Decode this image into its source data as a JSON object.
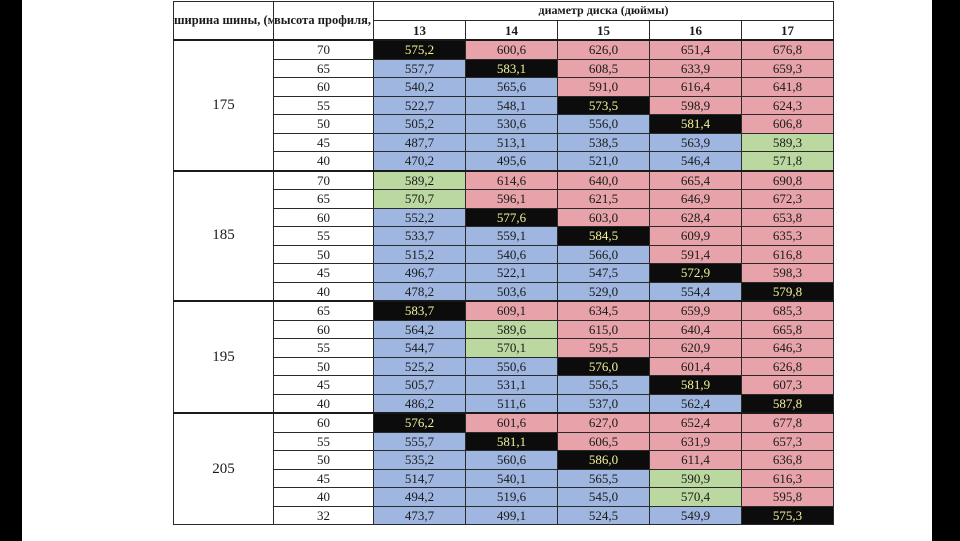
{
  "headers": {
    "width": "ширина шины, (мм)",
    "profile": "высота профиля, (%)",
    "diameter": "диаметр диска (дюймы)",
    "diameters": [
      "13",
      "14",
      "15",
      "16",
      "17"
    ]
  },
  "colors": {
    "blue": "#9fb7e0",
    "red": "#e7a3a9",
    "green": "#bcd8a1",
    "highlight_bg": "#0c0c0c",
    "highlight_text": "#f3f19a"
  },
  "groups": [
    {
      "width": "175",
      "rows": [
        {
          "profile": "70",
          "cells": [
            {
              "v": "575,2",
              "c": "black"
            },
            {
              "v": "600,6",
              "c": "red"
            },
            {
              "v": "626,0",
              "c": "red"
            },
            {
              "v": "651,4",
              "c": "red"
            },
            {
              "v": "676,8",
              "c": "red"
            }
          ]
        },
        {
          "profile": "65",
          "cells": [
            {
              "v": "557,7",
              "c": "blue"
            },
            {
              "v": "583,1",
              "c": "black"
            },
            {
              "v": "608,5",
              "c": "red"
            },
            {
              "v": "633,9",
              "c": "red"
            },
            {
              "v": "659,3",
              "c": "red"
            }
          ]
        },
        {
          "profile": "60",
          "cells": [
            {
              "v": "540,2",
              "c": "blue"
            },
            {
              "v": "565,6",
              "c": "blue"
            },
            {
              "v": "591,0",
              "c": "red"
            },
            {
              "v": "616,4",
              "c": "red"
            },
            {
              "v": "641,8",
              "c": "red"
            }
          ]
        },
        {
          "profile": "55",
          "cells": [
            {
              "v": "522,7",
              "c": "blue"
            },
            {
              "v": "548,1",
              "c": "blue"
            },
            {
              "v": "573,5",
              "c": "black"
            },
            {
              "v": "598,9",
              "c": "red"
            },
            {
              "v": "624,3",
              "c": "red"
            }
          ]
        },
        {
          "profile": "50",
          "cells": [
            {
              "v": "505,2",
              "c": "blue"
            },
            {
              "v": "530,6",
              "c": "blue"
            },
            {
              "v": "556,0",
              "c": "blue"
            },
            {
              "v": "581,4",
              "c": "black"
            },
            {
              "v": "606,8",
              "c": "red"
            }
          ]
        },
        {
          "profile": "45",
          "cells": [
            {
              "v": "487,7",
              "c": "blue"
            },
            {
              "v": "513,1",
              "c": "blue"
            },
            {
              "v": "538,5",
              "c": "blue"
            },
            {
              "v": "563,9",
              "c": "blue"
            },
            {
              "v": "589,3",
              "c": "green"
            }
          ]
        },
        {
          "profile": "40",
          "cells": [
            {
              "v": "470,2",
              "c": "blue"
            },
            {
              "v": "495,6",
              "c": "blue"
            },
            {
              "v": "521,0",
              "c": "blue"
            },
            {
              "v": "546,4",
              "c": "blue"
            },
            {
              "v": "571,8",
              "c": "green"
            }
          ]
        }
      ]
    },
    {
      "width": "185",
      "rows": [
        {
          "profile": "70",
          "cells": [
            {
              "v": "589,2",
              "c": "green"
            },
            {
              "v": "614,6",
              "c": "red"
            },
            {
              "v": "640,0",
              "c": "red"
            },
            {
              "v": "665,4",
              "c": "red"
            },
            {
              "v": "690,8",
              "c": "red"
            }
          ]
        },
        {
          "profile": "65",
          "cells": [
            {
              "v": "570,7",
              "c": "green"
            },
            {
              "v": "596,1",
              "c": "red"
            },
            {
              "v": "621,5",
              "c": "red"
            },
            {
              "v": "646,9",
              "c": "red"
            },
            {
              "v": "672,3",
              "c": "red"
            }
          ]
        },
        {
          "profile": "60",
          "cells": [
            {
              "v": "552,2",
              "c": "blue"
            },
            {
              "v": "577,6",
              "c": "black"
            },
            {
              "v": "603,0",
              "c": "red"
            },
            {
              "v": "628,4",
              "c": "red"
            },
            {
              "v": "653,8",
              "c": "red"
            }
          ]
        },
        {
          "profile": "55",
          "cells": [
            {
              "v": "533,7",
              "c": "blue"
            },
            {
              "v": "559,1",
              "c": "blue"
            },
            {
              "v": "584,5",
              "c": "black"
            },
            {
              "v": "609,9",
              "c": "red"
            },
            {
              "v": "635,3",
              "c": "red"
            }
          ]
        },
        {
          "profile": "50",
          "cells": [
            {
              "v": "515,2",
              "c": "blue"
            },
            {
              "v": "540,6",
              "c": "blue"
            },
            {
              "v": "566,0",
              "c": "blue"
            },
            {
              "v": "591,4",
              "c": "red"
            },
            {
              "v": "616,8",
              "c": "red"
            }
          ]
        },
        {
          "profile": "45",
          "cells": [
            {
              "v": "496,7",
              "c": "blue"
            },
            {
              "v": "522,1",
              "c": "blue"
            },
            {
              "v": "547,5",
              "c": "blue"
            },
            {
              "v": "572,9",
              "c": "black"
            },
            {
              "v": "598,3",
              "c": "red"
            }
          ]
        },
        {
          "profile": "40",
          "cells": [
            {
              "v": "478,2",
              "c": "blue"
            },
            {
              "v": "503,6",
              "c": "blue"
            },
            {
              "v": "529,0",
              "c": "blue"
            },
            {
              "v": "554,4",
              "c": "blue"
            },
            {
              "v": "579,8",
              "c": "black"
            }
          ]
        }
      ]
    },
    {
      "width": "195",
      "rows": [
        {
          "profile": "65",
          "cells": [
            {
              "v": "583,7",
              "c": "black"
            },
            {
              "v": "609,1",
              "c": "red"
            },
            {
              "v": "634,5",
              "c": "red"
            },
            {
              "v": "659,9",
              "c": "red"
            },
            {
              "v": "685,3",
              "c": "red"
            }
          ]
        },
        {
          "profile": "60",
          "cells": [
            {
              "v": "564,2",
              "c": "blue"
            },
            {
              "v": "589,6",
              "c": "green"
            },
            {
              "v": "615,0",
              "c": "red"
            },
            {
              "v": "640,4",
              "c": "red"
            },
            {
              "v": "665,8",
              "c": "red"
            }
          ]
        },
        {
          "profile": "55",
          "cells": [
            {
              "v": "544,7",
              "c": "blue"
            },
            {
              "v": "570,1",
              "c": "green"
            },
            {
              "v": "595,5",
              "c": "red"
            },
            {
              "v": "620,9",
              "c": "red"
            },
            {
              "v": "646,3",
              "c": "red"
            }
          ]
        },
        {
          "profile": "50",
          "cells": [
            {
              "v": "525,2",
              "c": "blue"
            },
            {
              "v": "550,6",
              "c": "blue"
            },
            {
              "v": "576,0",
              "c": "black"
            },
            {
              "v": "601,4",
              "c": "red"
            },
            {
              "v": "626,8",
              "c": "red"
            }
          ]
        },
        {
          "profile": "45",
          "cells": [
            {
              "v": "505,7",
              "c": "blue"
            },
            {
              "v": "531,1",
              "c": "blue"
            },
            {
              "v": "556,5",
              "c": "blue"
            },
            {
              "v": "581,9",
              "c": "black"
            },
            {
              "v": "607,3",
              "c": "red"
            }
          ]
        },
        {
          "profile": "40",
          "cells": [
            {
              "v": "486,2",
              "c": "blue"
            },
            {
              "v": "511,6",
              "c": "blue"
            },
            {
              "v": "537,0",
              "c": "blue"
            },
            {
              "v": "562,4",
              "c": "blue"
            },
            {
              "v": "587,8",
              "c": "black"
            }
          ]
        }
      ]
    },
    {
      "width": "205",
      "rows": [
        {
          "profile": "60",
          "cells": [
            {
              "v": "576,2",
              "c": "black"
            },
            {
              "v": "601,6",
              "c": "red"
            },
            {
              "v": "627,0",
              "c": "red"
            },
            {
              "v": "652,4",
              "c": "red"
            },
            {
              "v": "677,8",
              "c": "red"
            }
          ]
        },
        {
          "profile": "55",
          "cells": [
            {
              "v": "555,7",
              "c": "blue"
            },
            {
              "v": "581,1",
              "c": "black"
            },
            {
              "v": "606,5",
              "c": "red"
            },
            {
              "v": "631,9",
              "c": "red"
            },
            {
              "v": "657,3",
              "c": "red"
            }
          ]
        },
        {
          "profile": "50",
          "cells": [
            {
              "v": "535,2",
              "c": "blue"
            },
            {
              "v": "560,6",
              "c": "blue"
            },
            {
              "v": "586,0",
              "c": "black"
            },
            {
              "v": "611,4",
              "c": "red"
            },
            {
              "v": "636,8",
              "c": "red"
            }
          ]
        },
        {
          "profile": "45",
          "cells": [
            {
              "v": "514,7",
              "c": "blue"
            },
            {
              "v": "540,1",
              "c": "blue"
            },
            {
              "v": "565,5",
              "c": "blue"
            },
            {
              "v": "590,9",
              "c": "green"
            },
            {
              "v": "616,3",
              "c": "red"
            }
          ]
        },
        {
          "profile": "40",
          "cells": [
            {
              "v": "494,2",
              "c": "blue"
            },
            {
              "v": "519,6",
              "c": "blue"
            },
            {
              "v": "545,0",
              "c": "blue"
            },
            {
              "v": "570,4",
              "c": "green"
            },
            {
              "v": "595,8",
              "c": "red"
            }
          ]
        },
        {
          "profile": "32",
          "cells": [
            {
              "v": "473,7",
              "c": "blue"
            },
            {
              "v": "499,1",
              "c": "blue"
            },
            {
              "v": "524,5",
              "c": "blue"
            },
            {
              "v": "549,9",
              "c": "blue"
            },
            {
              "v": "575,3",
              "c": "black"
            }
          ]
        }
      ]
    }
  ]
}
